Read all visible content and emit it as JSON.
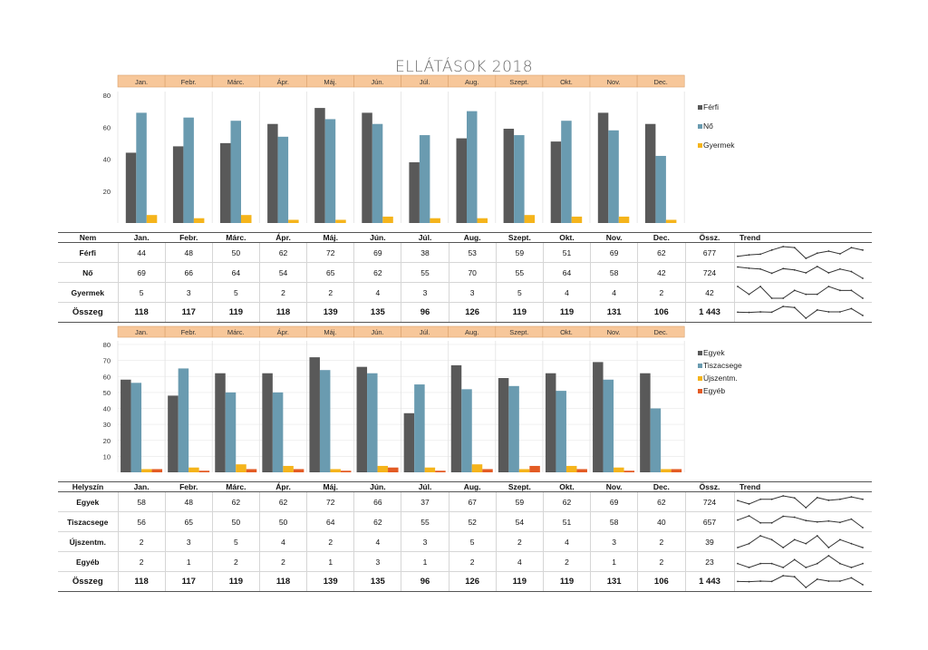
{
  "title": "ELLÁTÁSOK 2018",
  "months": [
    "Jan.",
    "Febr.",
    "Márc.",
    "Ápr.",
    "Máj.",
    "Jún.",
    "Júl.",
    "Aug.",
    "Szept.",
    "Okt.",
    "Nov.",
    "Dec."
  ],
  "colors": {
    "header_band": "#f7c79a",
    "dark": "#595959",
    "blue": "#6a9bb0",
    "yellow": "#f5b41b",
    "orange": "#e35b24"
  },
  "table1": {
    "header_label": "Nem",
    "sum_header": "Össz.",
    "trend_header": "Trend",
    "rows": [
      {
        "label": "Férfi",
        "values": [
          "44",
          "48",
          "50",
          "62",
          "72",
          "69",
          "38",
          "53",
          "59",
          "51",
          "69",
          "62"
        ],
        "total": "677"
      },
      {
        "label": "Nő",
        "values": [
          "69",
          "66",
          "64",
          "54",
          "65",
          "62",
          "55",
          "70",
          "55",
          "64",
          "58",
          "42"
        ],
        "total": "724"
      },
      {
        "label": "Gyermek",
        "values": [
          "5",
          "3",
          "5",
          "2",
          "2",
          "4",
          "3",
          "3",
          "5",
          "4",
          "4",
          "2"
        ],
        "total": "42"
      }
    ],
    "sum_row": {
      "label": "Összeg",
      "values": [
        "118",
        "117",
        "119",
        "118",
        "139",
        "135",
        "96",
        "126",
        "119",
        "119",
        "131",
        "106"
      ],
      "total": "1 443"
    }
  },
  "table2": {
    "header_label": "Helyszín",
    "sum_header": "Össz.",
    "trend_header": "Trend",
    "rows": [
      {
        "label": "Egyek",
        "values": [
          "58",
          "48",
          "62",
          "62",
          "72",
          "66",
          "37",
          "67",
          "59",
          "62",
          "69",
          "62"
        ],
        "total": "724"
      },
      {
        "label": "Tiszacsege",
        "values": [
          "56",
          "65",
          "50",
          "50",
          "64",
          "62",
          "55",
          "52",
          "54",
          "51",
          "58",
          "40"
        ],
        "total": "657"
      },
      {
        "label": "Újszentm.",
        "values": [
          "2",
          "3",
          "5",
          "4",
          "2",
          "4",
          "3",
          "5",
          "2",
          "4",
          "3",
          "2"
        ],
        "total": "39"
      },
      {
        "label": "Egyéb",
        "values": [
          "2",
          "1",
          "2",
          "2",
          "1",
          "3",
          "1",
          "2",
          "4",
          "2",
          "1",
          "2"
        ],
        "total": "23"
      }
    ],
    "sum_row": {
      "label": "Összeg",
      "values": [
        "118",
        "117",
        "119",
        "118",
        "139",
        "135",
        "96",
        "126",
        "119",
        "119",
        "131",
        "106"
      ],
      "total": "1 443"
    }
  },
  "chart_data": [
    {
      "type": "bar",
      "title": "ELLÁTÁSOK 2018",
      "categories": [
        "Jan.",
        "Febr.",
        "Márc.",
        "Ápr.",
        "Máj.",
        "Jún.",
        "Júl.",
        "Aug.",
        "Szept.",
        "Okt.",
        "Nov.",
        "Dec."
      ],
      "series": [
        {
          "name": "Férfi",
          "color": "#595959",
          "values": [
            44,
            48,
            50,
            62,
            72,
            69,
            38,
            53,
            59,
            51,
            69,
            62
          ]
        },
        {
          "name": "Nő",
          "color": "#6a9bb0",
          "values": [
            69,
            66,
            64,
            54,
            65,
            62,
            55,
            70,
            55,
            64,
            58,
            42
          ]
        },
        {
          "name": "Gyermek",
          "color": "#f5b41b",
          "values": [
            5,
            3,
            5,
            2,
            2,
            4,
            3,
            3,
            5,
            4,
            4,
            2
          ]
        }
      ],
      "yticks": [
        20,
        40,
        60,
        80
      ],
      "ylim": [
        0,
        80
      ],
      "legend": "right",
      "grid": false
    },
    {
      "type": "bar",
      "categories": [
        "Jan.",
        "Febr.",
        "Márc.",
        "Ápr.",
        "Máj.",
        "Jún.",
        "Júl.",
        "Aug.",
        "Szept.",
        "Okt.",
        "Nov.",
        "Dec."
      ],
      "series": [
        {
          "name": "Egyek",
          "color": "#595959",
          "values": [
            58,
            48,
            62,
            62,
            72,
            66,
            37,
            67,
            59,
            62,
            69,
            62
          ]
        },
        {
          "name": "Tiszacsege",
          "color": "#6a9bb0",
          "values": [
            56,
            65,
            50,
            50,
            64,
            62,
            55,
            52,
            54,
            51,
            58,
            40
          ]
        },
        {
          "name": "Újszentm.",
          "color": "#f5b41b",
          "values": [
            2,
            3,
            5,
            4,
            2,
            4,
            3,
            5,
            2,
            4,
            3,
            2
          ]
        },
        {
          "name": "Egyéb",
          "color": "#e35b24",
          "values": [
            2,
            1,
            2,
            2,
            1,
            3,
            1,
            2,
            4,
            2,
            1,
            2
          ]
        }
      ],
      "yticks": [
        10,
        20,
        30,
        40,
        50,
        60,
        70,
        80
      ],
      "ylim": [
        0,
        80
      ],
      "legend": "right",
      "grid": true
    }
  ]
}
